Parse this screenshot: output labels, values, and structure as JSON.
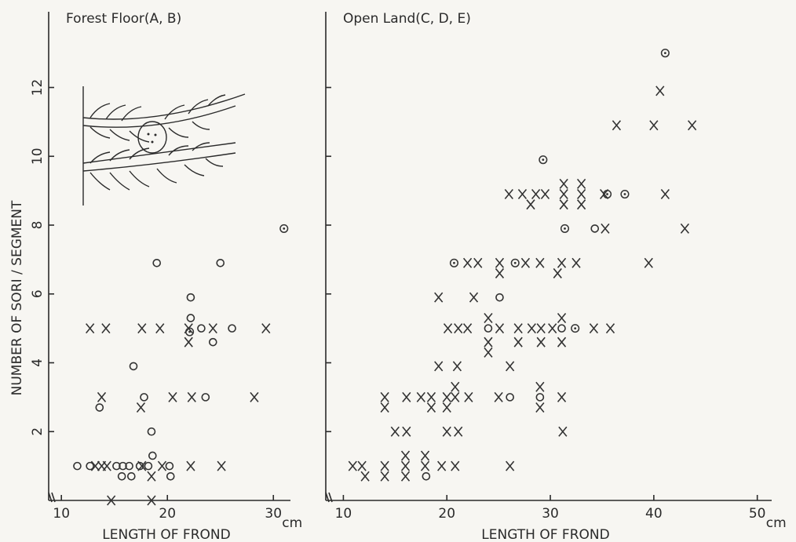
{
  "chart_data": [
    {
      "type": "scatter",
      "title": "Forest Floor(A, B)",
      "x_label": "LENGTH OF FROND",
      "y_label": "NUMBER OF SORI / SEGMENT",
      "x_unit": "cm",
      "xlim": [
        8.8,
        32.5
      ],
      "ylim": [
        0,
        14.2
      ],
      "xticks": [
        10,
        20,
        30
      ],
      "yticks": [
        2,
        4,
        6,
        8,
        10,
        12
      ],
      "series": [
        {
          "marker": "x",
          "color": "#333333",
          "x": [
            13.2,
            13.8,
            14.3,
            17.6,
            19.5,
            22.2,
            25.1,
            18.5,
            14.7,
            18.5,
            17.5,
            13.8,
            20.5,
            22.3,
            28.2,
            22,
            12.7,
            14.2,
            17.6,
            19.3,
            22,
            24.3,
            29.3
          ],
          "y": [
            1,
            1,
            1,
            1,
            1,
            1,
            1,
            0.7,
            0,
            0,
            2.7,
            3,
            3,
            3,
            3,
            4.6,
            5,
            5,
            5,
            5,
            5,
            5,
            5
          ]
        },
        {
          "marker": "o",
          "color": "#333333",
          "x": [
            11.5,
            12.7,
            15.2,
            15.8,
            16.4,
            17.4,
            18.2,
            20.2,
            15.7,
            16.6,
            20.3,
            18.6,
            18.5,
            13.6,
            17.8,
            23.6,
            16.8,
            24.3,
            23.2,
            26.1,
            22.2,
            22.2,
            19,
            25
          ],
          "y": [
            1,
            1,
            1,
            1,
            1,
            1,
            1,
            1,
            0.7,
            0.7,
            0.7,
            1.3,
            2,
            2.7,
            3,
            3,
            3.9,
            4.6,
            5,
            5,
            5.3,
            5.9,
            6.9,
            6.9
          ]
        },
        {
          "marker": "dot",
          "color": "#333333",
          "x": [
            22.1,
            31
          ],
          "y": [
            4.9,
            7.9
          ]
        }
      ]
    },
    {
      "type": "scatter",
      "title": "Open Land(C, D, E)",
      "x_label": "LENGTH OF FROND",
      "x_unit": "cm",
      "xlim": [
        8.3,
        52.3
      ],
      "ylim": [
        0,
        14.2
      ],
      "xticks": [
        10,
        20,
        30,
        40,
        50
      ],
      "yticks": [
        2,
        4,
        6,
        8,
        10,
        12
      ],
      "series": [
        {
          "marker": "x",
          "color": "#333333",
          "x": [
            10.9,
            11.8,
            12.1,
            14.0,
            14.0,
            16.0,
            16.0,
            16.0,
            17.9,
            17.9,
            19.5,
            20.8,
            26.1,
            15.0,
            16.1,
            20.0,
            21.1,
            31.2,
            14.0,
            14.0,
            16.1,
            17.5,
            18.5,
            18.5,
            20.0,
            20.0,
            20.8,
            20.8,
            22.1,
            25.0,
            29.0,
            29.0,
            31.1,
            19.2,
            21.0,
            26.1,
            20.1,
            21.1,
            22.0,
            24.0,
            24.0,
            24.0,
            25.1,
            26.9,
            28.2,
            26.9,
            29.1,
            29.1,
            30.2,
            31.1,
            31.1,
            34.2,
            35.8,
            19.2,
            22.6,
            22.0,
            23.0,
            25.1,
            25.1,
            27.6,
            29.0,
            30.7,
            31.1,
            32.5,
            39.5,
            35.3,
            43.0,
            26.0,
            27.3,
            28.1,
            28.6,
            29.5,
            31.3,
            31.3,
            31.3,
            33.0,
            33.0,
            33.0,
            35.2,
            41.1,
            36.4,
            40.0,
            43.7,
            40.6
          ],
          "y": [
            1,
            1,
            0.7,
            1,
            0.7,
            1.3,
            1,
            0.7,
            1.3,
            1,
            1,
            1,
            1,
            2,
            2,
            2,
            2,
            2,
            3,
            2.7,
            3,
            3,
            2.7,
            3,
            3,
            2.7,
            3,
            3.3,
            3,
            3,
            3.3,
            2.7,
            3,
            3.9,
            3.9,
            3.9,
            5,
            5,
            5,
            4.6,
            4.3,
            5.3,
            5,
            5,
            5,
            4.6,
            4.6,
            5,
            5,
            4.6,
            5.3,
            5,
            5,
            5.9,
            5.9,
            6.9,
            6.9,
            6.9,
            6.6,
            6.9,
            6.9,
            6.6,
            6.9,
            6.9,
            6.9,
            7.9,
            7.9,
            8.9,
            8.9,
            8.6,
            8.9,
            8.9,
            8.9,
            8.6,
            9.2,
            8.9,
            8.6,
            9.2,
            8.9,
            8.9,
            10.9,
            10.9,
            10.9,
            11.9
          ]
        },
        {
          "marker": "o",
          "color": "#333333",
          "x": [
            24.0,
            31.1,
            26.1,
            29.0,
            18.0,
            25.1,
            34.3
          ],
          "y": [
            5,
            5,
            3,
            3,
            0.7,
            5.9,
            7.9
          ]
        },
        {
          "marker": "dot",
          "color": "#333333",
          "x": [
            20.7,
            26.6,
            32.4,
            31.4,
            35.5,
            37.2,
            29.3,
            41.1
          ],
          "y": [
            6.9,
            6.9,
            5,
            7.9,
            8.9,
            8.9,
            9.9,
            13.0
          ]
        }
      ]
    }
  ]
}
